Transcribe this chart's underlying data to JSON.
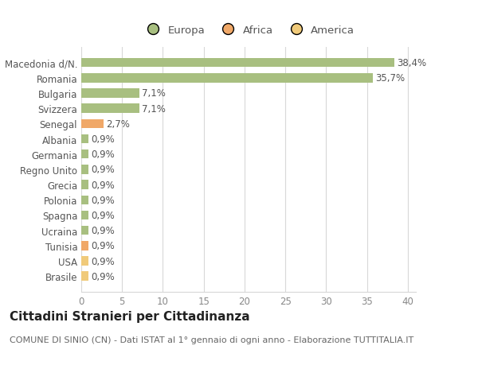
{
  "categories": [
    "Brasile",
    "USA",
    "Tunisia",
    "Ucraina",
    "Spagna",
    "Polonia",
    "Grecia",
    "Regno Unito",
    "Germania",
    "Albania",
    "Senegal",
    "Svizzera",
    "Bulgaria",
    "Romania",
    "Macedonia d/N."
  ],
  "values": [
    0.9,
    0.9,
    0.9,
    0.9,
    0.9,
    0.9,
    0.9,
    0.9,
    0.9,
    0.9,
    2.7,
    7.1,
    7.1,
    35.7,
    38.4
  ],
  "colors": [
    "#f0ca7a",
    "#f0ca7a",
    "#f0a868",
    "#a8bf80",
    "#a8bf80",
    "#a8bf80",
    "#a8bf80",
    "#a8bf80",
    "#a8bf80",
    "#a8bf80",
    "#f0a868",
    "#a8bf80",
    "#a8bf80",
    "#a8bf80",
    "#a8bf80"
  ],
  "labels": [
    "0,9%",
    "0,9%",
    "0,9%",
    "0,9%",
    "0,9%",
    "0,9%",
    "0,9%",
    "0,9%",
    "0,9%",
    "0,9%",
    "2,7%",
    "7,1%",
    "7,1%",
    "35,7%",
    "38,4%"
  ],
  "legend": [
    {
      "label": "Europa",
      "color": "#a8bf80"
    },
    {
      "label": "Africa",
      "color": "#f0a868"
    },
    {
      "label": "America",
      "color": "#f0ca7a"
    }
  ],
  "xlim": [
    0,
    41
  ],
  "xticks": [
    0,
    5,
    10,
    15,
    20,
    25,
    30,
    35,
    40
  ],
  "title": "Cittadini Stranieri per Cittadinanza",
  "subtitle": "COMUNE DI SINIO (CN) - Dati ISTAT al 1° gennaio di ogni anno - Elaborazione TUTTITALIA.IT",
  "bg_color": "#ffffff",
  "grid_color": "#d8d8d8",
  "bar_height": 0.6,
  "title_fontsize": 11,
  "subtitle_fontsize": 8,
  "label_fontsize": 8.5,
  "tick_fontsize": 8.5,
  "legend_fontsize": 9.5
}
